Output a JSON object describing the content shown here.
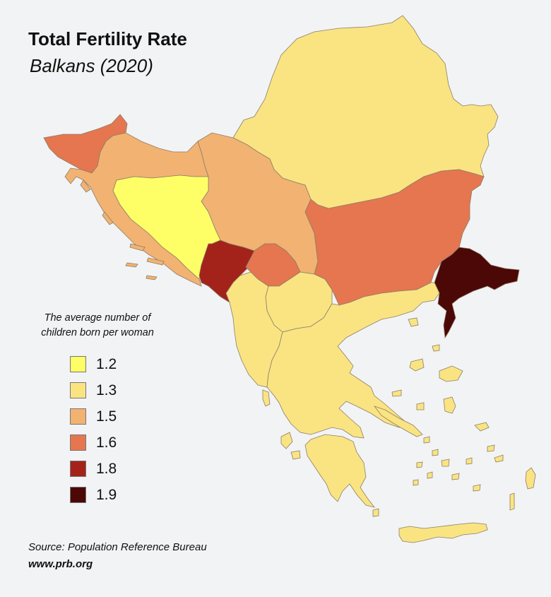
{
  "title": "Total Fertility Rate",
  "subtitle": "Balkans (2020)",
  "legend": {
    "title": "The average number of children born per woman",
    "items": [
      {
        "label": "1.2",
        "color": "#fefe66"
      },
      {
        "label": "1.3",
        "color": "#fae482"
      },
      {
        "label": "1.5",
        "color": "#f2b271"
      },
      {
        "label": "1.6",
        "color": "#e5764f"
      },
      {
        "label": "1.8",
        "color": "#a3231a"
      },
      {
        "label": "1.9",
        "color": "#4c0707"
      }
    ]
  },
  "source": "Source: Population Reference Bureau",
  "url": "www.prb.org",
  "regions": [
    {
      "id": "romania",
      "tfr": "1.3"
    },
    {
      "id": "croatia",
      "tfr": "1.5"
    },
    {
      "id": "serbia",
      "tfr": "1.5"
    },
    {
      "id": "bosnia",
      "tfr": "1.2"
    },
    {
      "id": "montenegro",
      "tfr": "1.8"
    },
    {
      "id": "kosovo",
      "tfr": "1.6"
    },
    {
      "id": "north-macedonia",
      "tfr": "1.3"
    },
    {
      "id": "albania",
      "tfr": "1.3"
    },
    {
      "id": "greece",
      "tfr": "1.3"
    },
    {
      "id": "bulgaria",
      "tfr": "1.6"
    },
    {
      "id": "slovenia",
      "tfr": "1.6"
    },
    {
      "id": "turkey-europe",
      "tfr": "1.9"
    }
  ]
}
